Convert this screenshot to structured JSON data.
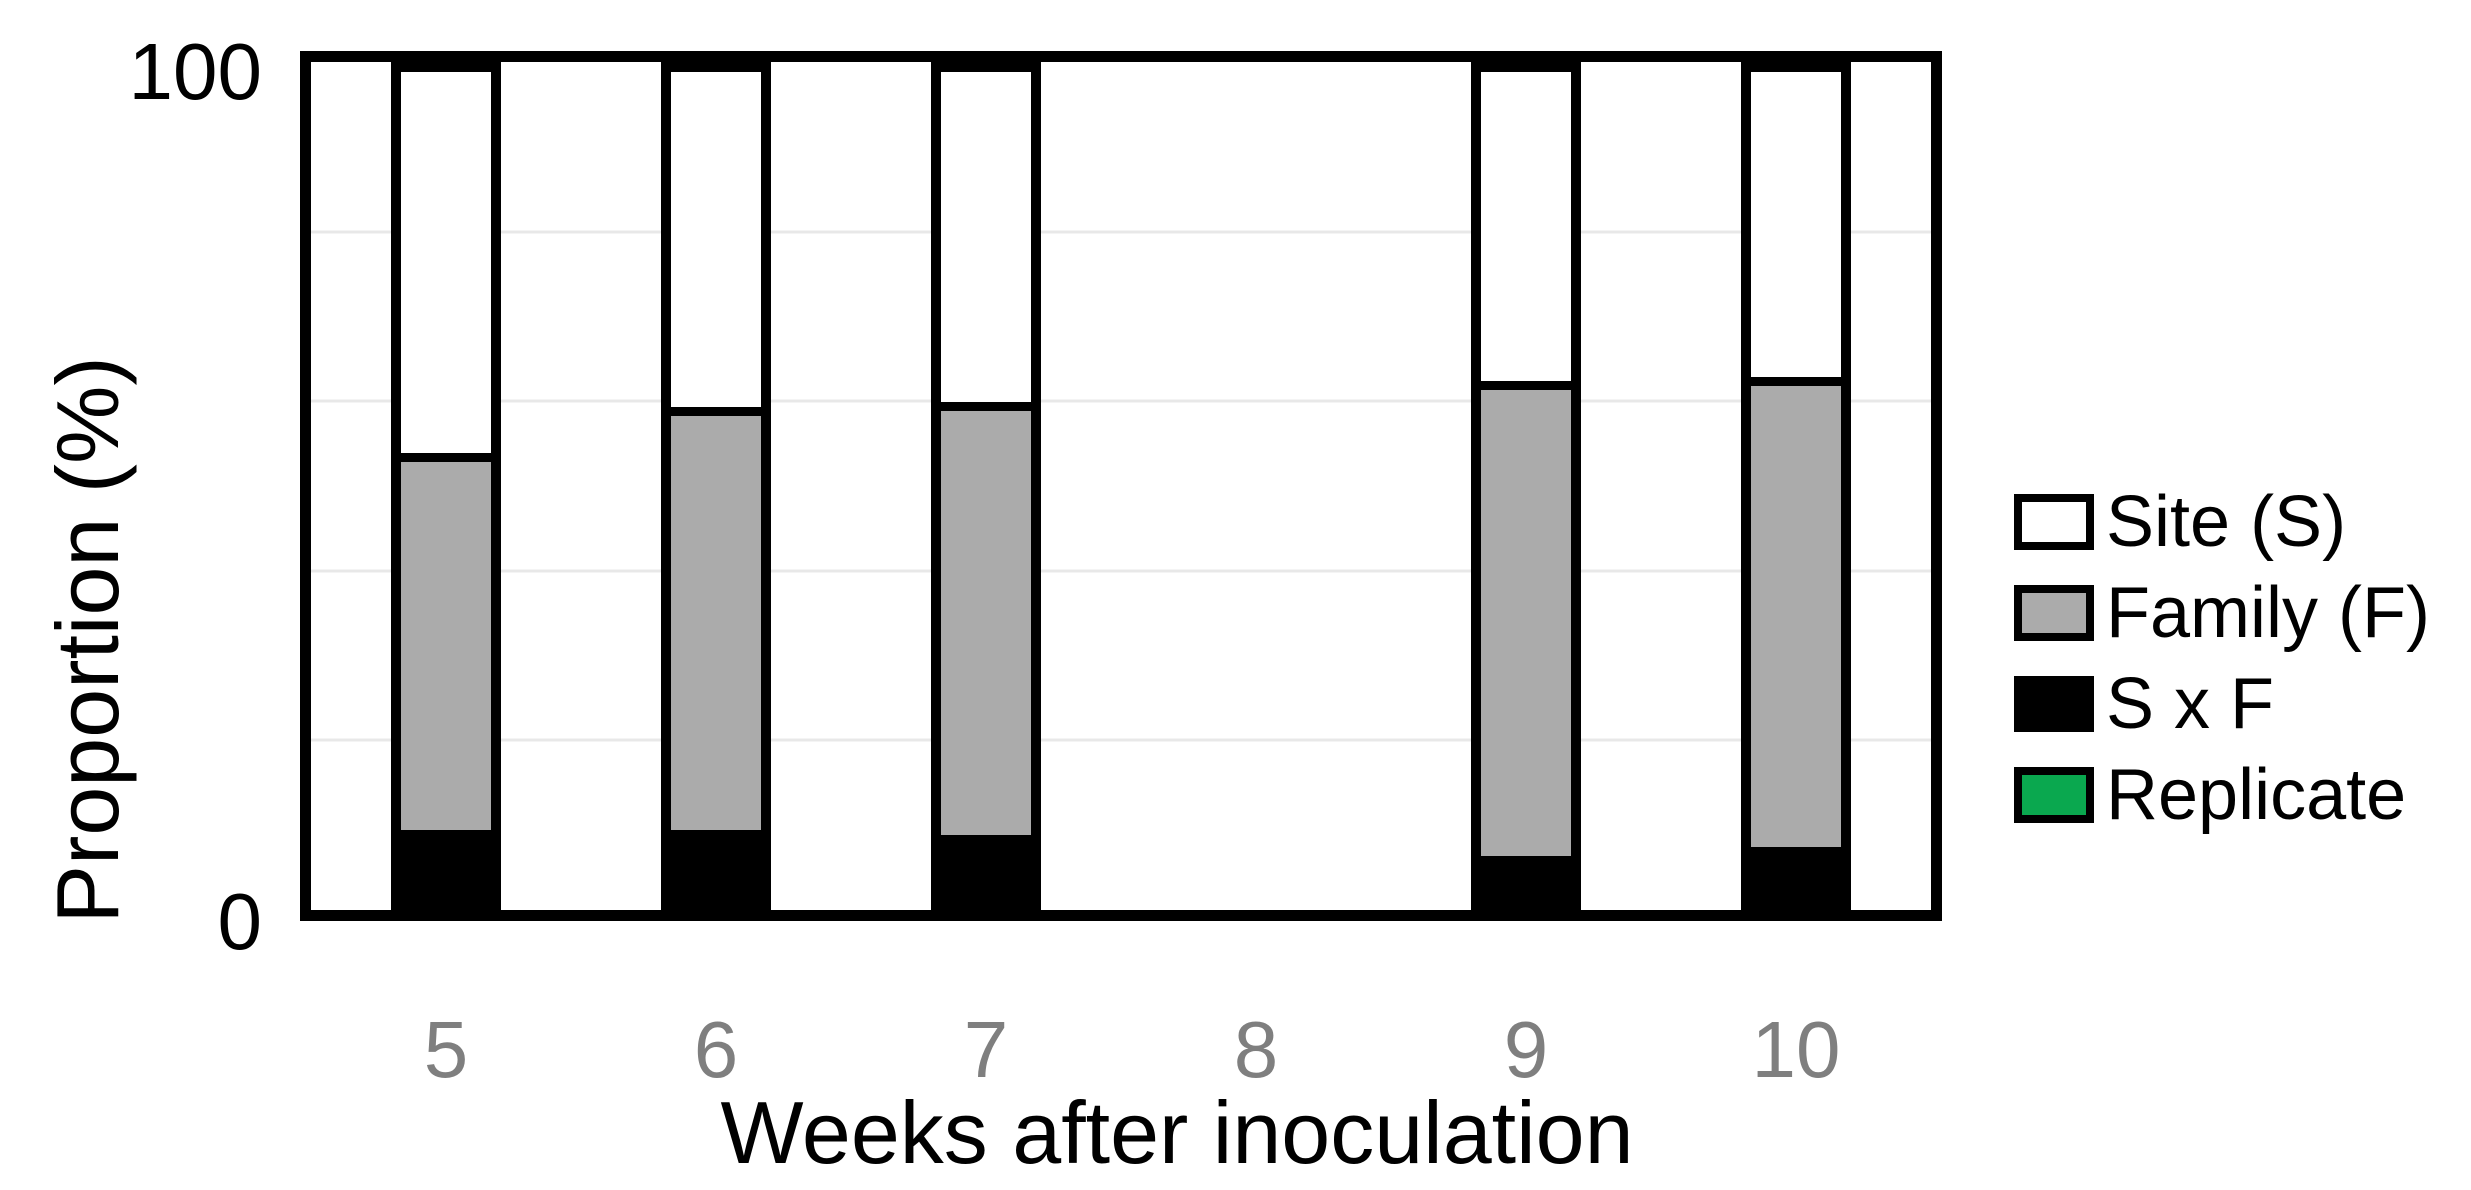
{
  "figure": {
    "y_axis": {
      "title": "Proportion (%)",
      "tick_top": "100",
      "tick_bottom": "0",
      "min": 0,
      "max": 100
    },
    "x_axis": {
      "title": "Weeks after inoculation",
      "ticks": [
        "5",
        "6",
        "7",
        "8",
        "9",
        "10"
      ]
    },
    "legend": [
      {
        "label": "Site (S)",
        "color": "#ffffff"
      },
      {
        "label": "Family (F)",
        "color": "#ababab"
      },
      {
        "label": "S x F",
        "color": "#000000"
      },
      {
        "label": "Replicate",
        "color": "#0aa84f"
      }
    ],
    "colors": {
      "bar_outline": "#000000",
      "site_white": "#ffffff",
      "family_gray": "#ababab",
      "sxf_black": "#000000",
      "replicate_green": "#0aa84f",
      "gridline": "#e8e8e8",
      "x_tick_text": "#7f7f7f",
      "axis_text": "#000000"
    }
  },
  "chart_data": {
    "type": "bar",
    "stacked": true,
    "title": "",
    "xlabel": "Weeks after inoculation",
    "ylabel": "Proportion (%)",
    "ylim": [
      0,
      100
    ],
    "gridlines_percent": [
      20,
      40,
      60,
      80
    ],
    "legend_position": "right",
    "categories": [
      "5",
      "6",
      "7",
      "8",
      "9",
      "10"
    ],
    "series": [
      {
        "name": "S x F",
        "color": "#000000",
        "values": [
          9.5,
          9.5,
          9,
          null,
          6.5,
          7.5
        ]
      },
      {
        "name": "Family (F)",
        "color": "#ababab",
        "values": [
          44,
          49.5,
          50.5,
          null,
          55.5,
          55
        ]
      },
      {
        "name": "Site (S)",
        "color": "#ffffff",
        "values": [
          46.5,
          41,
          40.5,
          null,
          38,
          37.5
        ]
      }
    ],
    "note_missing_category": "8"
  }
}
